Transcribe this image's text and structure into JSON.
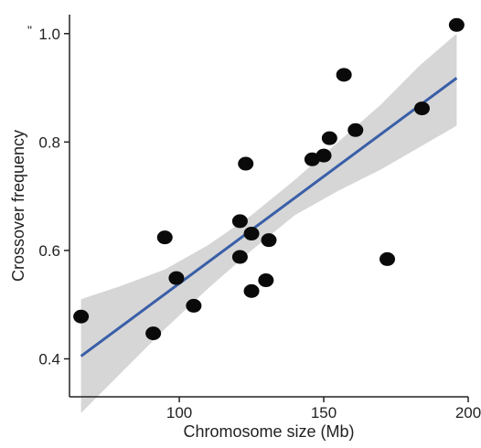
{
  "chart_data": {
    "type": "scatter",
    "title": "",
    "xlabel": "Chromosome size (Mb)",
    "ylabel": "Crossover frequency",
    "corner_mark": "\"",
    "xlim": [
      62,
      200
    ],
    "ylim": [
      0.33,
      1.035
    ],
    "x_ticks": [
      {
        "value": 100,
        "label": "100"
      },
      {
        "value": 150,
        "label": "150"
      },
      {
        "value": 200,
        "label": "200"
      }
    ],
    "y_ticks": [
      {
        "value": 0.4,
        "label": "0.4"
      },
      {
        "value": 0.6,
        "label": "0.6"
      },
      {
        "value": 0.8,
        "label": "0.8"
      },
      {
        "value": 1.0,
        "label": "1.0"
      }
    ],
    "grid": false,
    "legend": "none",
    "points": [
      {
        "x": 66,
        "y": 0.478
      },
      {
        "x": 91,
        "y": 0.447
      },
      {
        "x": 95,
        "y": 0.624
      },
      {
        "x": 99,
        "y": 0.549
      },
      {
        "x": 105,
        "y": 0.498
      },
      {
        "x": 121,
        "y": 0.654
      },
      {
        "x": 121,
        "y": 0.588
      },
      {
        "x": 123,
        "y": 0.76
      },
      {
        "x": 125,
        "y": 0.631
      },
      {
        "x": 125,
        "y": 0.525
      },
      {
        "x": 130,
        "y": 0.545
      },
      {
        "x": 131,
        "y": 0.619
      },
      {
        "x": 146,
        "y": 0.768
      },
      {
        "x": 150,
        "y": 0.775
      },
      {
        "x": 152,
        "y": 0.807
      },
      {
        "x": 157,
        "y": 0.924
      },
      {
        "x": 161,
        "y": 0.822
      },
      {
        "x": 172,
        "y": 0.584
      },
      {
        "x": 184,
        "y": 0.862
      },
      {
        "x": 196,
        "y": 1.016
      }
    ],
    "fit_line": {
      "x": [
        66,
        196
      ],
      "y": [
        0.405,
        0.918
      ]
    },
    "confidence_band": {
      "x": [
        66,
        80,
        95,
        110,
        125,
        140,
        155,
        170,
        183,
        196
      ],
      "lower": [
        0.3,
        0.375,
        0.455,
        0.53,
        0.6,
        0.665,
        0.71,
        0.75,
        0.79,
        0.83
      ],
      "upper": [
        0.51,
        0.535,
        0.565,
        0.61,
        0.665,
        0.73,
        0.8,
        0.87,
        0.94,
        1.0
      ]
    },
    "colors": {
      "points": "#0a0a0a",
      "fit_line": "#3a5fa8",
      "band": "#d6d6d6",
      "axis": "#222222"
    }
  }
}
